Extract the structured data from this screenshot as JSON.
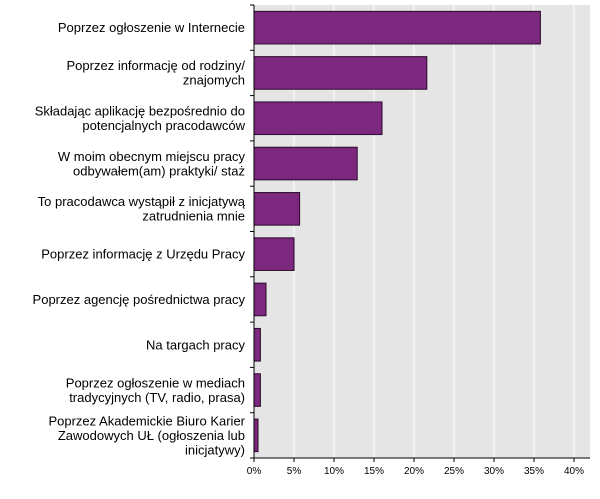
{
  "colors": {
    "bar_fill": "#7d287f",
    "bar_stroke": "#2a0a2b",
    "plot_background": "#e5e5e5",
    "gridline": "#ffffff",
    "axis": "#000000"
  },
  "chart_data": {
    "type": "bar",
    "orientation": "horizontal",
    "categories": [
      "Poprzez ogłoszenie w Internecie",
      "Poprzez informację od rodziny/ znajomych",
      "Składając aplikację bezpośrednio do potencjalnych pracodawców",
      "W moim obecnym miejscu pracy odbywałem(am) praktyki/ staż",
      "To pracodawca wystąpił z inicjatywą zatrudnienia mnie",
      "Poprzez informację z Urzędu Pracy",
      "Poprzez agencję pośrednictwa pracy",
      "Na targach pracy",
      "Poprzez ogłoszenie w mediach tradycyjnych (TV, radio, prasa)",
      "Poprzez Akademickie Biuro Karier Zawodowych UŁ (ogłoszenia lub inicjatywy)"
    ],
    "category_lines": [
      [
        "Poprzez ogłoszenie w Internecie"
      ],
      [
        "Poprzez informację od rodziny/",
        "znajomych"
      ],
      [
        "Składając aplikację bezpośrednio do",
        "potencjalnych pracodawców"
      ],
      [
        "W moim obecnym miejscu pracy",
        "odbywałem(am) praktyki/ staż"
      ],
      [
        "To pracodawca wystąpił z inicjatywą",
        "zatrudnienia mnie"
      ],
      [
        "Poprzez informację z Urzędu Pracy"
      ],
      [
        "Poprzez agencję pośrednictwa pracy"
      ],
      [
        "Na targach pracy"
      ],
      [
        "Poprzez ogłoszenie w mediach",
        "tradycyjnych (TV, radio, prasa)"
      ],
      [
        "Poprzez Akademickie Biuro Karier",
        "Zawodowych UŁ (ogłoszenia lub",
        "inicjatywy)"
      ]
    ],
    "values": [
      35.8,
      21.6,
      16.0,
      12.9,
      5.7,
      5.0,
      1.5,
      0.8,
      0.8,
      0.5
    ],
    "xlim": [
      0,
      42
    ],
    "xticks": [
      0,
      5,
      10,
      15,
      20,
      25,
      30,
      35,
      40
    ],
    "xtick_labels": [
      "0%",
      "5%",
      "10%",
      "15%",
      "20%",
      "25%",
      "30%",
      "35%",
      "40%"
    ],
    "grid": true,
    "title": "",
    "xlabel": "",
    "ylabel": ""
  }
}
